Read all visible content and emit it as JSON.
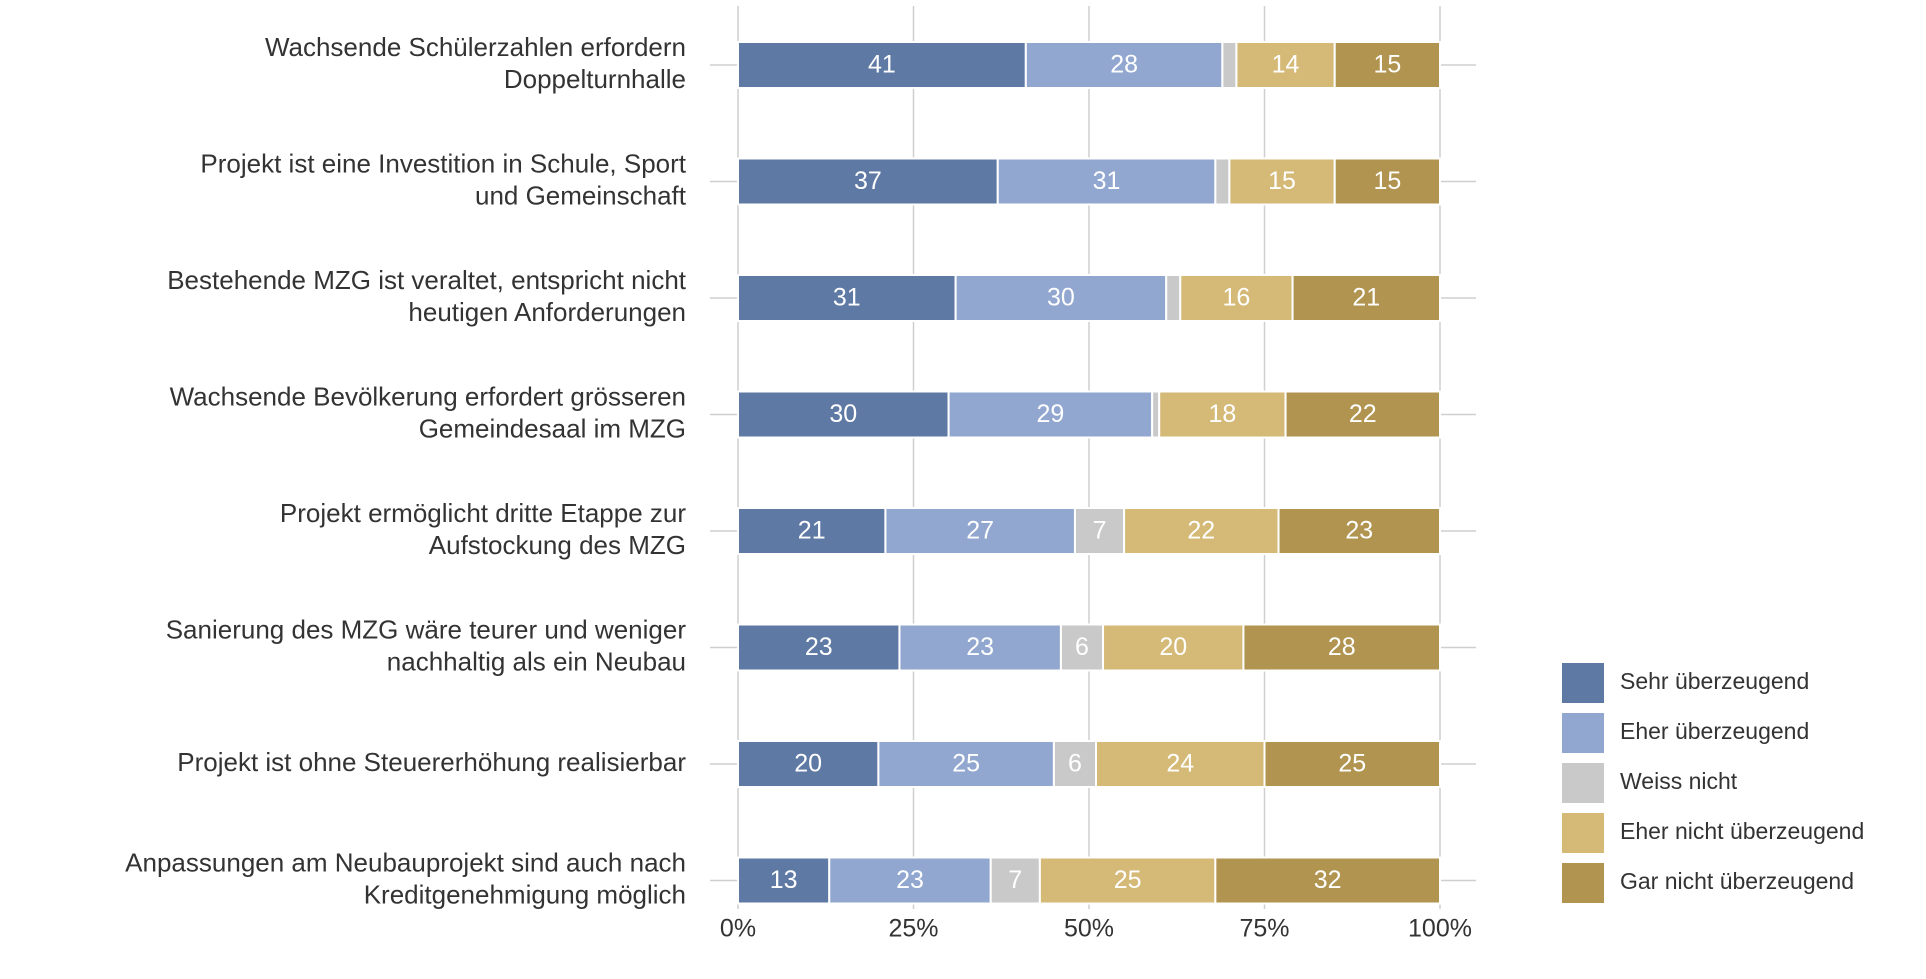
{
  "chart_data": {
    "type": "stacked_bar_horizontal",
    "categories": [
      [
        "Wachsende Schülerzahlen erfordern",
        "Doppelturnhalle"
      ],
      [
        "Projekt ist eine Investition in Schule, Sport",
        "und Gemeinschaft"
      ],
      [
        "Bestehende MZG ist veraltet, entspricht nicht",
        "heutigen Anforderungen"
      ],
      [
        "Wachsende Bevölkerung erfordert grösseren",
        "Gemeindesaal im MZG"
      ],
      [
        "Projekt ermöglicht dritte Etappe zur",
        "Aufstockung des MZG"
      ],
      [
        "Sanierung des MZG wäre teurer und weniger",
        "nachhaltig als ein Neubau"
      ],
      [
        "Projekt ist ohne Steuererhöhung realisierbar"
      ],
      [
        "Anpassungen am Neubauprojekt sind auch nach",
        "Kreditgenehmigung möglich"
      ]
    ],
    "series": [
      {
        "name": "Sehr überzeugend",
        "color": "#5f79a5",
        "values": [
          41,
          37,
          31,
          30,
          21,
          23,
          20,
          13
        ]
      },
      {
        "name": "Eher überzeugend",
        "color": "#91a7d0",
        "values": [
          28,
          31,
          30,
          29,
          27,
          23,
          25,
          23
        ]
      },
      {
        "name": "Weiss nicht",
        "color": "#c9c9c9",
        "values": [
          2,
          2,
          2,
          1,
          7,
          6,
          6,
          7
        ]
      },
      {
        "name": "Eher nicht überzeugend",
        "color": "#d5b977",
        "values": [
          14,
          15,
          16,
          18,
          22,
          20,
          24,
          25
        ]
      },
      {
        "name": "Gar nicht überzeugend",
        "color": "#b0944f",
        "values": [
          15,
          15,
          21,
          22,
          23,
          28,
          25,
          32
        ]
      }
    ],
    "xlim": [
      0,
      100
    ],
    "xticks": [
      {
        "value": 0,
        "label": "0%"
      },
      {
        "value": 25,
        "label": "25%"
      },
      {
        "value": 50,
        "label": "50%"
      },
      {
        "value": 75,
        "label": "75%"
      },
      {
        "value": 100,
        "label": "100%"
      }
    ],
    "grid": true,
    "legend": "right"
  }
}
